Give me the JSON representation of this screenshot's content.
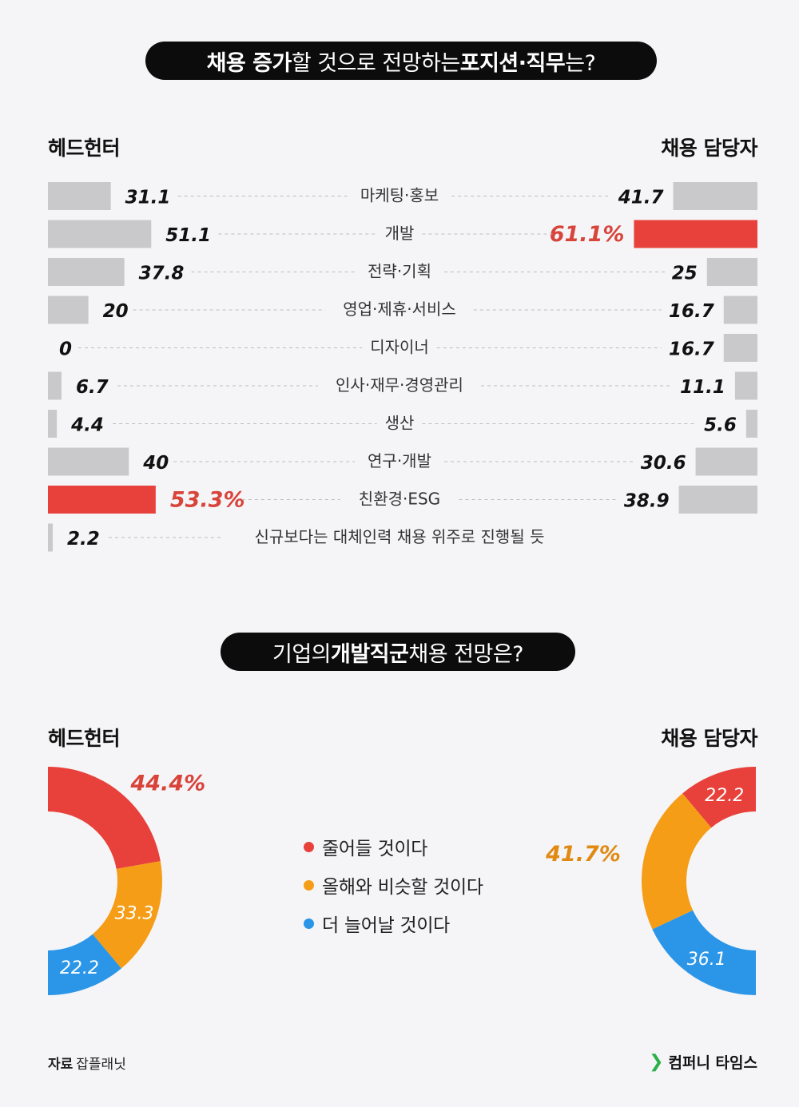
{
  "colors": {
    "highlight": "#e8413b",
    "gray": "#c9c9cc",
    "orange": "#f59d16",
    "blue": "#2b96e8",
    "dark": "#0c0c0c",
    "highlight_text": "#d8433a",
    "orange_text": "#e08a14"
  },
  "section1": {
    "title_parts": {
      "b1": "채용 증가",
      "t1": "할 것으로 전망하는 ",
      "b2": "포지션·직무",
      "t2": "는?"
    },
    "left_label": "헤드헌터",
    "right_label": "채용 담당자"
  },
  "section2": {
    "title_parts": {
      "t1": "기업의 ",
      "b1": "개발직군",
      "t2": " 채용 전망은?"
    },
    "left_label": "헤드헌터",
    "right_label": "채용 담당자"
  },
  "legend": [
    {
      "label": "줄어들 것이다",
      "color": "#e8413b"
    },
    {
      "label": "올해와 비슷할 것이다",
      "color": "#f59d16"
    },
    {
      "label": "더 늘어날 것이다",
      "color": "#2b96e8"
    }
  ],
  "footer": {
    "source_key": "자료",
    "source_value": "잡플래닛",
    "brand": "컴퍼니 타임스",
    "brand_icon": "chevron-right-icon"
  },
  "chart_data": [
    {
      "type": "bar",
      "title": "채용 증가할 것으로 전망하는 포지션·직무는?",
      "categories": [
        "마케팅·홍보",
        "개발",
        "전략·기획",
        "영업·제휴·서비스",
        "디자이너",
        "인사·재무·경영관리",
        "생산",
        "연구·개발",
        "친환경·ESG",
        "신규보다는 대체인력 채용 위주로 진행될 듯"
      ],
      "series": [
        {
          "name": "헤드헌터",
          "values": [
            31.1,
            51.1,
            37.8,
            20,
            0,
            6.7,
            4.4,
            40,
            53.3,
            2.2
          ],
          "labels": [
            "31.1",
            "51.1",
            "37.8",
            "20",
            "0",
            "6.7",
            "4.4",
            "40",
            "53.3%",
            "2.2"
          ]
        },
        {
          "name": "채용 담당자",
          "values": [
            41.7,
            61.1,
            25,
            16.7,
            16.7,
            11.1,
            5.6,
            30.6,
            38.9,
            null
          ],
          "labels": [
            "41.7",
            "61.1%",
            "25",
            "16.7",
            "16.7",
            "11.1",
            "5.6",
            "30.6",
            "38.9",
            ""
          ]
        }
      ],
      "highlight": {
        "헤드헌터": "친환경·ESG",
        "채용 담당자": "개발"
      }
    },
    {
      "type": "pie",
      "title": "헤드헌터",
      "labels": [
        "줄어들 것이다",
        "올해와 비슷할 것이다",
        "더 늘어날 것이다"
      ],
      "values": [
        44.4,
        33.3,
        22.2
      ],
      "value_labels": [
        "44.4%",
        "33.3",
        "22.2"
      ]
    },
    {
      "type": "pie",
      "title": "채용 담당자",
      "labels": [
        "줄어들 것이다",
        "올해와 비슷할 것이다",
        "더 늘어날 것이다"
      ],
      "values": [
        22.2,
        41.7,
        36.1
      ],
      "value_labels": [
        "22.2",
        "41.7%",
        "36.1"
      ]
    }
  ]
}
